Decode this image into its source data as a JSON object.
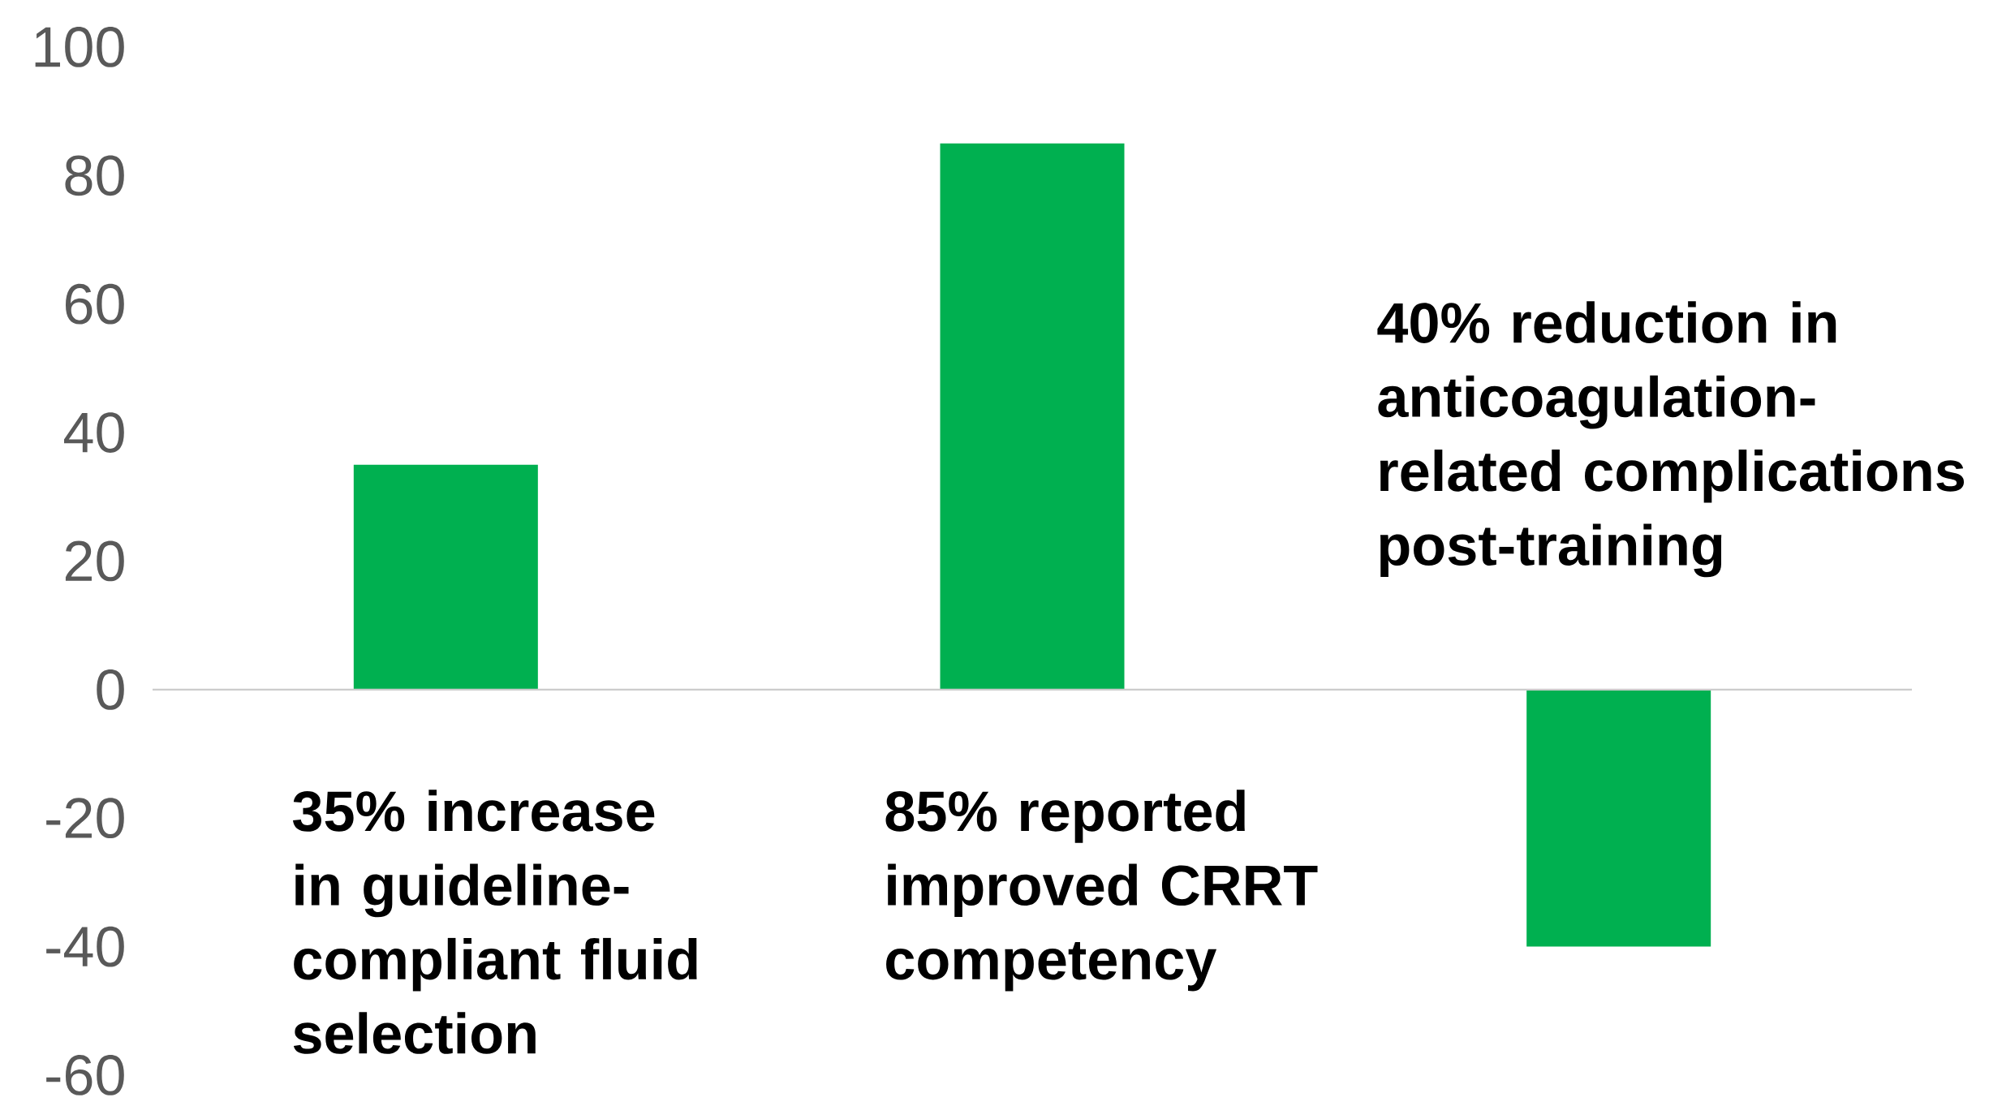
{
  "chart_data": {
    "type": "bar",
    "categories": [
      null,
      null,
      null
    ],
    "values": [
      35,
      85,
      -40
    ],
    "color": "#00b050",
    "ylim": [
      -60,
      100
    ],
    "yticks": [
      -60,
      -40,
      -20,
      0,
      20,
      40,
      60,
      80,
      100
    ],
    "annotations": [
      "35% increase in guideline-compliant fluid selection",
      "85% reported improved CRRT competency",
      "40% reduction in anticoagulation-related complications post-training"
    ]
  }
}
